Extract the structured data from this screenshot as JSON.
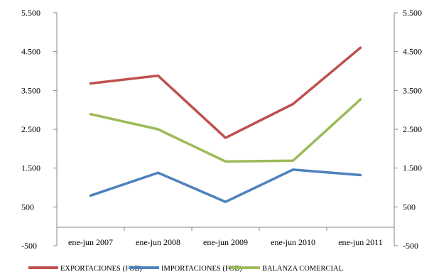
{
  "chart_data": {
    "type": "line",
    "categories": [
      "ene-jun 2007",
      "ene-jun 2008",
      "ene-jun 2009",
      "ene-jun 2010",
      "ene-jun 2011"
    ],
    "ylim": [
      -500,
      5500
    ],
    "yticks": [
      -500,
      500,
      1500,
      2500,
      3500,
      4500,
      5500
    ],
    "ytick_labels": [
      "-500",
      "500",
      "1.500",
      "2.500",
      "3.500",
      "4.500",
      "5.500"
    ],
    "secondary_axis": true,
    "grid": false,
    "legend_position": "bottom",
    "series": [
      {
        "name": "EXPORTACIONES (FOB)",
        "color": "#c0504d",
        "values": [
          3680,
          3880,
          2280,
          3150,
          4600
        ]
      },
      {
        "name": "IMPORTACIONES (FOB)",
        "color": "#4f81bd",
        "values": [
          790,
          1380,
          630,
          1460,
          1320
        ]
      },
      {
        "name": "BALANZA COMERCIAL",
        "color": "#9bbb59",
        "values": [
          2890,
          2500,
          1670,
          1690,
          3270
        ]
      }
    ]
  }
}
